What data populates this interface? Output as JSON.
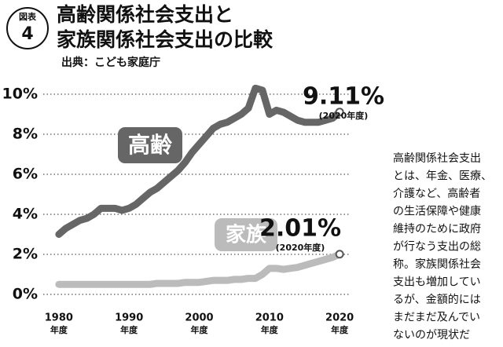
{
  "badge": {
    "label": "図表",
    "number": "4"
  },
  "chart_data": {
    "type": "line",
    "title": [
      "高齢関係社会支出と",
      "家族関係社会支出の比較"
    ],
    "source": "出典：こども家庭庁",
    "x": [
      1980,
      1981,
      1982,
      1983,
      1984,
      1985,
      1986,
      1987,
      1988,
      1989,
      1990,
      1991,
      1992,
      1993,
      1994,
      1995,
      1996,
      1997,
      1998,
      1999,
      2000,
      2001,
      2002,
      2003,
      2004,
      2005,
      2006,
      2007,
      2008,
      2009,
      2010,
      2011,
      2012,
      2013,
      2014,
      2015,
      2016,
      2017,
      2018,
      2019,
      2020
    ],
    "xlim": [
      1978,
      2022
    ],
    "xticks": [
      1980,
      1990,
      2000,
      2010,
      2020
    ],
    "x_unit": "年度",
    "ylim": [
      0,
      10.5
    ],
    "yticks": [
      {
        "value": 0,
        "label": "0%"
      },
      {
        "value": 2,
        "label": "2%"
      },
      {
        "value": 4,
        "label": "4%"
      },
      {
        "value": 6,
        "label": "6%"
      },
      {
        "value": 8,
        "label": "8%"
      },
      {
        "value": 10,
        "label": "10%"
      }
    ],
    "grid": true,
    "series": [
      {
        "name": "高齢",
        "color": "#666666",
        "values": [
          3.0,
          3.3,
          3.5,
          3.7,
          3.8,
          4.0,
          4.3,
          4.3,
          4.3,
          4.2,
          4.3,
          4.5,
          4.8,
          5.1,
          5.3,
          5.6,
          5.9,
          6.2,
          6.6,
          7.1,
          7.5,
          7.9,
          8.3,
          8.5,
          8.6,
          8.8,
          9.0,
          9.3,
          10.3,
          10.2,
          9.0,
          9.2,
          9.1,
          8.9,
          8.7,
          8.6,
          8.6,
          8.6,
          8.7,
          8.8,
          9.11
        ],
        "value_labels": [
          null,
          null,
          null,
          null,
          null,
          null,
          null,
          null,
          null,
          null,
          null,
          null,
          null,
          null,
          null,
          null,
          null,
          null,
          null,
          null,
          null,
          null,
          null,
          null,
          null,
          null,
          null,
          null,
          null,
          null,
          null,
          null,
          null,
          null,
          null,
          null,
          null,
          null,
          null,
          null,
          "9.11%"
        ],
        "note": "(2020年度)"
      },
      {
        "name": "家族",
        "color": "#bbbbbb",
        "values": [
          0.5,
          0.5,
          0.5,
          0.5,
          0.5,
          0.5,
          0.5,
          0.5,
          0.5,
          0.5,
          0.5,
          0.5,
          0.5,
          0.5,
          0.55,
          0.55,
          0.55,
          0.55,
          0.6,
          0.6,
          0.6,
          0.65,
          0.7,
          0.7,
          0.7,
          0.75,
          0.75,
          0.8,
          0.8,
          1.0,
          1.3,
          1.3,
          1.25,
          1.3,
          1.35,
          1.45,
          1.55,
          1.65,
          1.75,
          1.85,
          2.01
        ],
        "value_labels": [
          null,
          null,
          null,
          null,
          null,
          null,
          null,
          null,
          null,
          null,
          null,
          null,
          null,
          null,
          null,
          null,
          null,
          null,
          null,
          null,
          null,
          null,
          null,
          null,
          null,
          null,
          null,
          null,
          null,
          null,
          null,
          null,
          null,
          null,
          null,
          null,
          null,
          null,
          null,
          null,
          "2.01%"
        ],
        "note": "(2020年度)"
      }
    ]
  },
  "side_text": [
    "高齢関係社会支出",
    "とは、年金、医療、",
    "介護など、高齢者",
    "の生活保障や健康",
    "維持のために政府",
    "が行なう支出の総",
    "称。家族関係社会",
    "支出も増加してい",
    "るが、金額的には",
    "まだまだ及んでい",
    "ないのが現状だ"
  ]
}
